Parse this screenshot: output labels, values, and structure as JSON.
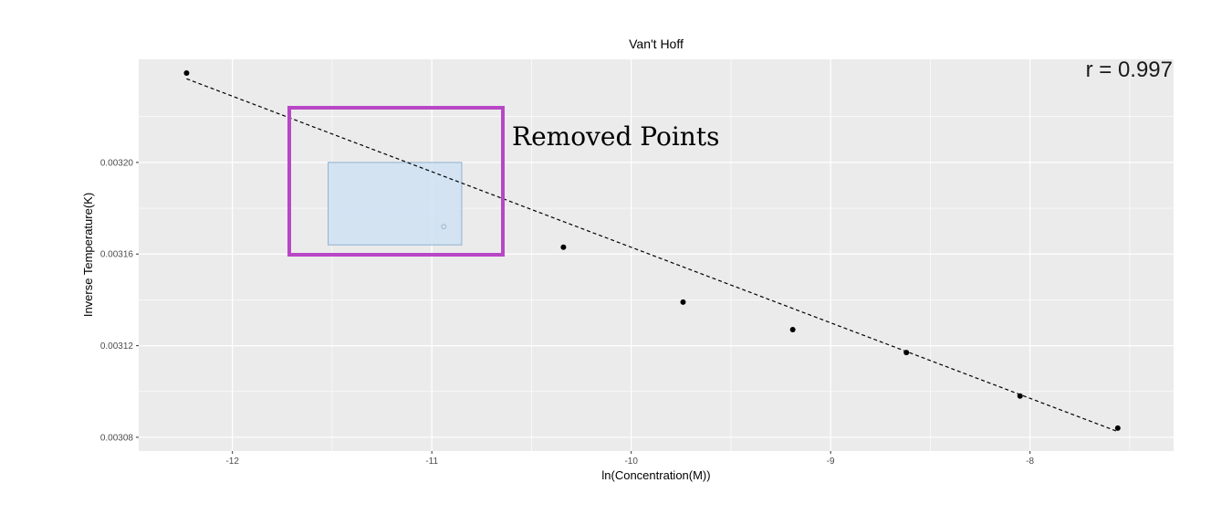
{
  "chart_data": {
    "type": "scatter",
    "title": "Van't Hoff",
    "xlabel": "ln(Concentration(M))",
    "ylabel": "Inverse Temperature(K)",
    "xlim": [
      -12.47,
      -7.28
    ],
    "ylim": [
      0.003074,
      0.003245
    ],
    "x_ticks": [
      -12,
      -11,
      -10,
      -9,
      -8
    ],
    "x_tick_labels": [
      "-12",
      "-11",
      "-10",
      "-9",
      "-8"
    ],
    "y_ticks": [
      0.00308,
      0.00312,
      0.00316,
      0.0032
    ],
    "y_tick_labels": [
      "0.00308",
      "0.00312",
      "0.00316",
      "0.00320"
    ],
    "grid": true,
    "panel_background": "#ebebeb",
    "grid_color": "#ffffff",
    "series": [
      {
        "points": [
          {
            "x": -12.23,
            "y": 0.003239
          },
          {
            "x": -10.34,
            "y": 0.003163
          },
          {
            "x": -9.74,
            "y": 0.003139
          },
          {
            "x": -9.19,
            "y": 0.003127
          },
          {
            "x": -8.62,
            "y": 0.003117
          },
          {
            "x": -8.05,
            "y": 0.003098
          },
          {
            "x": -7.56,
            "y": 0.003084
          }
        ],
        "color": "#000000"
      }
    ],
    "removed_points": [
      {
        "x": -10.94,
        "y": 0.003172
      }
    ],
    "fit_line": {
      "style": "dashed",
      "color": "#000000",
      "from": {
        "x": -12.23,
        "y": 0.0032365
      },
      "to": {
        "x": -7.56,
        "y": 0.0030825
      }
    },
    "annotations": [
      {
        "text": "r =  0.997",
        "position": "top-right"
      },
      {
        "text": "Removed Points",
        "color": "#000000"
      }
    ],
    "highlight_box": {
      "x_range": [
        -11.52,
        -10.85
      ],
      "y_range": [
        0.003164,
        0.0032
      ],
      "fill": "#cfe2f3",
      "stroke": "#8fb0cc"
    },
    "callout_frame": {
      "color": "#b847c6"
    }
  }
}
